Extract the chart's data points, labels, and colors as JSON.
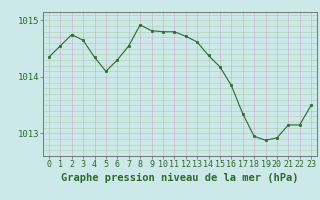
{
  "x": [
    0,
    1,
    2,
    3,
    4,
    5,
    6,
    7,
    8,
    9,
    10,
    11,
    12,
    13,
    14,
    15,
    16,
    17,
    18,
    19,
    20,
    21,
    22,
    23
  ],
  "y": [
    1014.35,
    1014.55,
    1014.75,
    1014.65,
    1014.35,
    1014.1,
    1014.3,
    1014.55,
    1014.92,
    1014.82,
    1014.8,
    1014.8,
    1014.72,
    1014.62,
    1014.38,
    1014.18,
    1013.85,
    1013.35,
    1012.95,
    1012.88,
    1012.92,
    1013.15,
    1013.15,
    1013.5
  ],
  "line_color": "#2d6a2d",
  "marker_color": "#2d6a2d",
  "bg_color": "#cce8e8",
  "plot_bg_color": "#cce8e8",
  "grid_color_h": "#aaccaa",
  "grid_color_v": "#ccaacc",
  "xlabel": "Graphe pression niveau de la mer (hPa)",
  "xlabel_color": "#2d6a2d",
  "tick_color": "#2d6a2d",
  "axis_color": "#666666",
  "ylim": [
    1012.6,
    1015.15
  ],
  "yticks": [
    1013,
    1014,
    1015
  ],
  "figsize": [
    3.2,
    2.0
  ],
  "dpi": 100,
  "tick_fontsize": 6.5,
  "xlabel_fontsize": 7.5
}
